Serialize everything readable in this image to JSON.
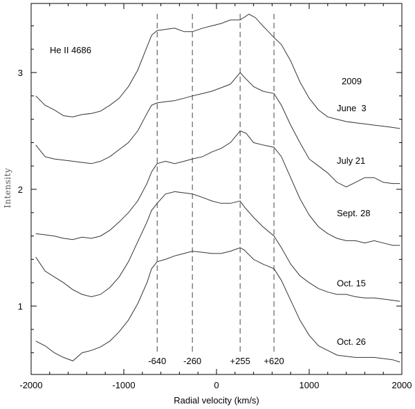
{
  "chart_data": {
    "type": "line",
    "title": "He II 4686",
    "year": "2009",
    "xlabel": "Radial velocity (km/s)",
    "ylabel": "Intensity",
    "xlim": [
      -2000,
      2000
    ],
    "ylim": [
      0.5,
      3.6
    ],
    "x_ticks": [
      -2000,
      -1000,
      0,
      1000,
      2000
    ],
    "y_ticks": [
      1,
      2,
      3
    ],
    "vertical_markers": [
      {
        "x": -640,
        "label": "-640"
      },
      {
        "x": -260,
        "label": "-260"
      },
      {
        "x": 255,
        "label": "+255"
      },
      {
        "x": 620,
        "label": "+620"
      }
    ],
    "series": [
      {
        "name": "June  3",
        "label_y": 2.67,
        "points": [
          [
            -1950,
            2.8
          ],
          [
            -1850,
            2.72
          ],
          [
            -1750,
            2.68
          ],
          [
            -1650,
            2.63
          ],
          [
            -1550,
            2.62
          ],
          [
            -1450,
            2.64
          ],
          [
            -1350,
            2.65
          ],
          [
            -1250,
            2.67
          ],
          [
            -1150,
            2.72
          ],
          [
            -1050,
            2.78
          ],
          [
            -950,
            2.88
          ],
          [
            -850,
            3.02
          ],
          [
            -750,
            3.22
          ],
          [
            -700,
            3.32
          ],
          [
            -640,
            3.36
          ],
          [
            -550,
            3.37
          ],
          [
            -450,
            3.38
          ],
          [
            -350,
            3.35
          ],
          [
            -260,
            3.35
          ],
          [
            -150,
            3.38
          ],
          [
            -50,
            3.4
          ],
          [
            50,
            3.42
          ],
          [
            150,
            3.45
          ],
          [
            255,
            3.45
          ],
          [
            350,
            3.5
          ],
          [
            420,
            3.47
          ],
          [
            500,
            3.4
          ],
          [
            620,
            3.3
          ],
          [
            700,
            3.24
          ],
          [
            800,
            3.1
          ],
          [
            900,
            2.92
          ],
          [
            1000,
            2.78
          ],
          [
            1100,
            2.68
          ],
          [
            1200,
            2.62
          ],
          [
            1300,
            2.6
          ],
          [
            1400,
            2.58
          ],
          [
            1500,
            2.57
          ],
          [
            1600,
            2.56
          ],
          [
            1700,
            2.55
          ],
          [
            1800,
            2.54
          ],
          [
            1900,
            2.53
          ],
          [
            1980,
            2.52
          ]
        ]
      },
      {
        "name": "July 21",
        "label_y": 2.22,
        "points": [
          [
            -1950,
            2.38
          ],
          [
            -1850,
            2.28
          ],
          [
            -1750,
            2.26
          ],
          [
            -1650,
            2.25
          ],
          [
            -1550,
            2.24
          ],
          [
            -1450,
            2.23
          ],
          [
            -1350,
            2.22
          ],
          [
            -1250,
            2.24
          ],
          [
            -1150,
            2.28
          ],
          [
            -1050,
            2.34
          ],
          [
            -950,
            2.4
          ],
          [
            -850,
            2.5
          ],
          [
            -750,
            2.65
          ],
          [
            -700,
            2.72
          ],
          [
            -640,
            2.74
          ],
          [
            -550,
            2.75
          ],
          [
            -450,
            2.76
          ],
          [
            -350,
            2.78
          ],
          [
            -260,
            2.8
          ],
          [
            -150,
            2.82
          ],
          [
            -50,
            2.84
          ],
          [
            50,
            2.87
          ],
          [
            150,
            2.9
          ],
          [
            255,
            3.0
          ],
          [
            300,
            2.96
          ],
          [
            400,
            2.88
          ],
          [
            500,
            2.84
          ],
          [
            620,
            2.82
          ],
          [
            700,
            2.72
          ],
          [
            800,
            2.55
          ],
          [
            900,
            2.4
          ],
          [
            1000,
            2.26
          ],
          [
            1100,
            2.2
          ],
          [
            1200,
            2.14
          ],
          [
            1300,
            2.06
          ],
          [
            1400,
            2.02
          ],
          [
            1500,
            2.06
          ],
          [
            1600,
            2.1
          ],
          [
            1700,
            2.1
          ],
          [
            1800,
            2.06
          ],
          [
            1900,
            2.05
          ],
          [
            1980,
            2.05
          ]
        ]
      },
      {
        "name": "Sept. 28",
        "label_y": 1.77,
        "points": [
          [
            -1950,
            1.62
          ],
          [
            -1850,
            1.61
          ],
          [
            -1750,
            1.6
          ],
          [
            -1650,
            1.58
          ],
          [
            -1550,
            1.57
          ],
          [
            -1450,
            1.59
          ],
          [
            -1350,
            1.58
          ],
          [
            -1250,
            1.6
          ],
          [
            -1150,
            1.65
          ],
          [
            -1050,
            1.72
          ],
          [
            -950,
            1.8
          ],
          [
            -850,
            1.9
          ],
          [
            -750,
            2.05
          ],
          [
            -700,
            2.15
          ],
          [
            -640,
            2.22
          ],
          [
            -550,
            2.24
          ],
          [
            -450,
            2.22
          ],
          [
            -350,
            2.24
          ],
          [
            -260,
            2.26
          ],
          [
            -150,
            2.28
          ],
          [
            -50,
            2.32
          ],
          [
            50,
            2.35
          ],
          [
            150,
            2.4
          ],
          [
            255,
            2.5
          ],
          [
            320,
            2.48
          ],
          [
            400,
            2.4
          ],
          [
            500,
            2.38
          ],
          [
            620,
            2.36
          ],
          [
            700,
            2.28
          ],
          [
            800,
            2.1
          ],
          [
            900,
            1.92
          ],
          [
            1000,
            1.78
          ],
          [
            1100,
            1.68
          ],
          [
            1200,
            1.62
          ],
          [
            1300,
            1.58
          ],
          [
            1400,
            1.56
          ],
          [
            1500,
            1.56
          ],
          [
            1600,
            1.54
          ],
          [
            1700,
            1.56
          ],
          [
            1800,
            1.54
          ],
          [
            1900,
            1.52
          ],
          [
            1980,
            1.52
          ]
        ]
      },
      {
        "name": "Oct. 15",
        "label_y": 1.17,
        "points": [
          [
            -1950,
            1.42
          ],
          [
            -1850,
            1.3
          ],
          [
            -1750,
            1.25
          ],
          [
            -1650,
            1.2
          ],
          [
            -1550,
            1.14
          ],
          [
            -1450,
            1.1
          ],
          [
            -1350,
            1.08
          ],
          [
            -1250,
            1.1
          ],
          [
            -1150,
            1.16
          ],
          [
            -1050,
            1.25
          ],
          [
            -950,
            1.38
          ],
          [
            -850,
            1.55
          ],
          [
            -750,
            1.72
          ],
          [
            -700,
            1.82
          ],
          [
            -640,
            1.88
          ],
          [
            -550,
            1.96
          ],
          [
            -450,
            1.98
          ],
          [
            -350,
            1.97
          ],
          [
            -260,
            1.96
          ],
          [
            -150,
            1.93
          ],
          [
            -50,
            1.9
          ],
          [
            50,
            1.88
          ],
          [
            150,
            1.88
          ],
          [
            255,
            1.9
          ],
          [
            300,
            1.85
          ],
          [
            400,
            1.76
          ],
          [
            500,
            1.68
          ],
          [
            620,
            1.6
          ],
          [
            700,
            1.5
          ],
          [
            800,
            1.36
          ],
          [
            900,
            1.26
          ],
          [
            1000,
            1.2
          ],
          [
            1100,
            1.15
          ],
          [
            1200,
            1.12
          ],
          [
            1300,
            1.1
          ],
          [
            1400,
            1.1
          ],
          [
            1500,
            1.08
          ],
          [
            1600,
            1.07
          ],
          [
            1700,
            1.07
          ],
          [
            1800,
            1.06
          ],
          [
            1900,
            1.05
          ],
          [
            1980,
            1.04
          ]
        ]
      },
      {
        "name": "Oct. 26",
        "label_y": 0.67,
        "points": [
          [
            -1950,
            0.7
          ],
          [
            -1850,
            0.66
          ],
          [
            -1750,
            0.6
          ],
          [
            -1650,
            0.56
          ],
          [
            -1550,
            0.53
          ],
          [
            -1450,
            0.6
          ],
          [
            -1350,
            0.62
          ],
          [
            -1250,
            0.65
          ],
          [
            -1150,
            0.7
          ],
          [
            -1050,
            0.78
          ],
          [
            -950,
            0.88
          ],
          [
            -850,
            1.02
          ],
          [
            -750,
            1.2
          ],
          [
            -700,
            1.32
          ],
          [
            -640,
            1.38
          ],
          [
            -550,
            1.4
          ],
          [
            -450,
            1.43
          ],
          [
            -350,
            1.45
          ],
          [
            -260,
            1.47
          ],
          [
            -150,
            1.46
          ],
          [
            -50,
            1.45
          ],
          [
            50,
            1.45
          ],
          [
            150,
            1.47
          ],
          [
            255,
            1.5
          ],
          [
            300,
            1.48
          ],
          [
            400,
            1.4
          ],
          [
            500,
            1.36
          ],
          [
            620,
            1.32
          ],
          [
            700,
            1.22
          ],
          [
            800,
            1.05
          ],
          [
            900,
            0.88
          ],
          [
            1000,
            0.75
          ],
          [
            1100,
            0.66
          ],
          [
            1200,
            0.62
          ],
          [
            1300,
            0.58
          ],
          [
            1400,
            0.57
          ],
          [
            1500,
            0.56
          ],
          [
            1600,
            0.56
          ],
          [
            1700,
            0.56
          ],
          [
            1800,
            0.55
          ],
          [
            1900,
            0.54
          ],
          [
            1980,
            0.52
          ]
        ]
      }
    ]
  }
}
